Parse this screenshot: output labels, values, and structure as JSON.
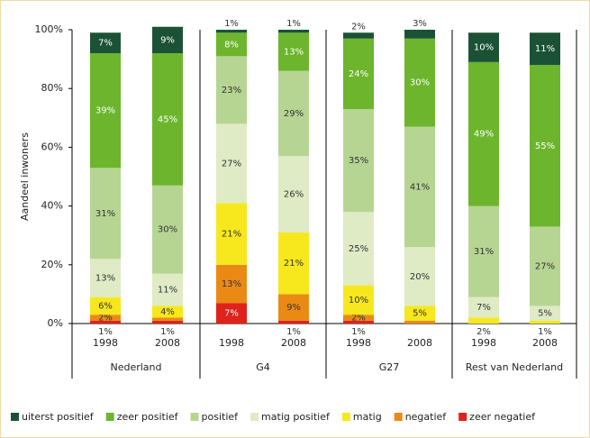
{
  "chart_data": {
    "type": "stacked_bar",
    "y_label": "Aandeel inwoners",
    "categories": [
      "1998",
      "2008",
      "1998",
      "2008",
      "1998",
      "2008",
      "1998",
      "2008"
    ],
    "groups": [
      {
        "name": "Nederland"
      },
      {
        "name": "G4"
      },
      {
        "name": "G27"
      },
      {
        "name": "Rest van Nederland"
      }
    ],
    "ylim": [
      0,
      100
    ],
    "yticks": [
      {
        "value": 0,
        "label": "0%"
      },
      {
        "value": 20,
        "label": "20%"
      },
      {
        "value": 40,
        "label": "40%"
      },
      {
        "value": 60,
        "label": "60%"
      },
      {
        "value": 80,
        "label": "80%"
      },
      {
        "value": 100,
        "label": "100%"
      }
    ],
    "series": [
      {
        "name": "uiterst positief",
        "color": "#1b5236",
        "values": [
          7,
          9,
          1,
          1,
          2,
          3,
          10,
          11
        ],
        "value_labels": [
          "7%",
          "9%",
          "1%",
          "1%",
          "2%",
          "3%",
          "10%",
          "11%"
        ]
      },
      {
        "name": "zeer positief",
        "color": "#6cb52d",
        "values": [
          39,
          45,
          8,
          13,
          24,
          30,
          49,
          55
        ],
        "value_labels": [
          "39%",
          "45%",
          "8%",
          "13%",
          "24%",
          "30%",
          "49%",
          "55%"
        ]
      },
      {
        "name": "positief",
        "color": "#b7d592",
        "values": [
          31,
          30,
          23,
          29,
          35,
          41,
          31,
          27
        ],
        "value_labels": [
          "31%",
          "30%",
          "23%",
          "29%",
          "35%",
          "41%",
          "31%",
          "27%"
        ]
      },
      {
        "name": "matig positief",
        "color": "#dfebc4",
        "values": [
          13,
          11,
          27,
          26,
          25,
          20,
          7,
          5
        ],
        "value_labels": [
          "13%",
          "11%",
          "27%",
          "26%",
          "25%",
          "20%",
          "7%",
          "5%"
        ]
      },
      {
        "name": "matig",
        "color": "#f7e81d",
        "values": [
          6,
          4,
          21,
          21,
          10,
          5,
          2,
          1
        ],
        "value_labels": [
          "6%",
          "4%",
          "21%",
          "21%",
          "10%",
          "5%",
          "2%",
          "1%"
        ]
      },
      {
        "name": "negatief",
        "color": "#ea8a15",
        "values": [
          2,
          1,
          13,
          9,
          2,
          1,
          0,
          0
        ],
        "value_labels": [
          "2%",
          null,
          "13%",
          "9%",
          "2%",
          null,
          null,
          null
        ]
      },
      {
        "name": "zeer negatief",
        "color": "#e0211c",
        "values": [
          1,
          1,
          7,
          1,
          1,
          0,
          0,
          0
        ],
        "value_labels": [
          "1%",
          "1%",
          "7%",
          "1%",
          "1%",
          null,
          null,
          null
        ]
      }
    ]
  }
}
